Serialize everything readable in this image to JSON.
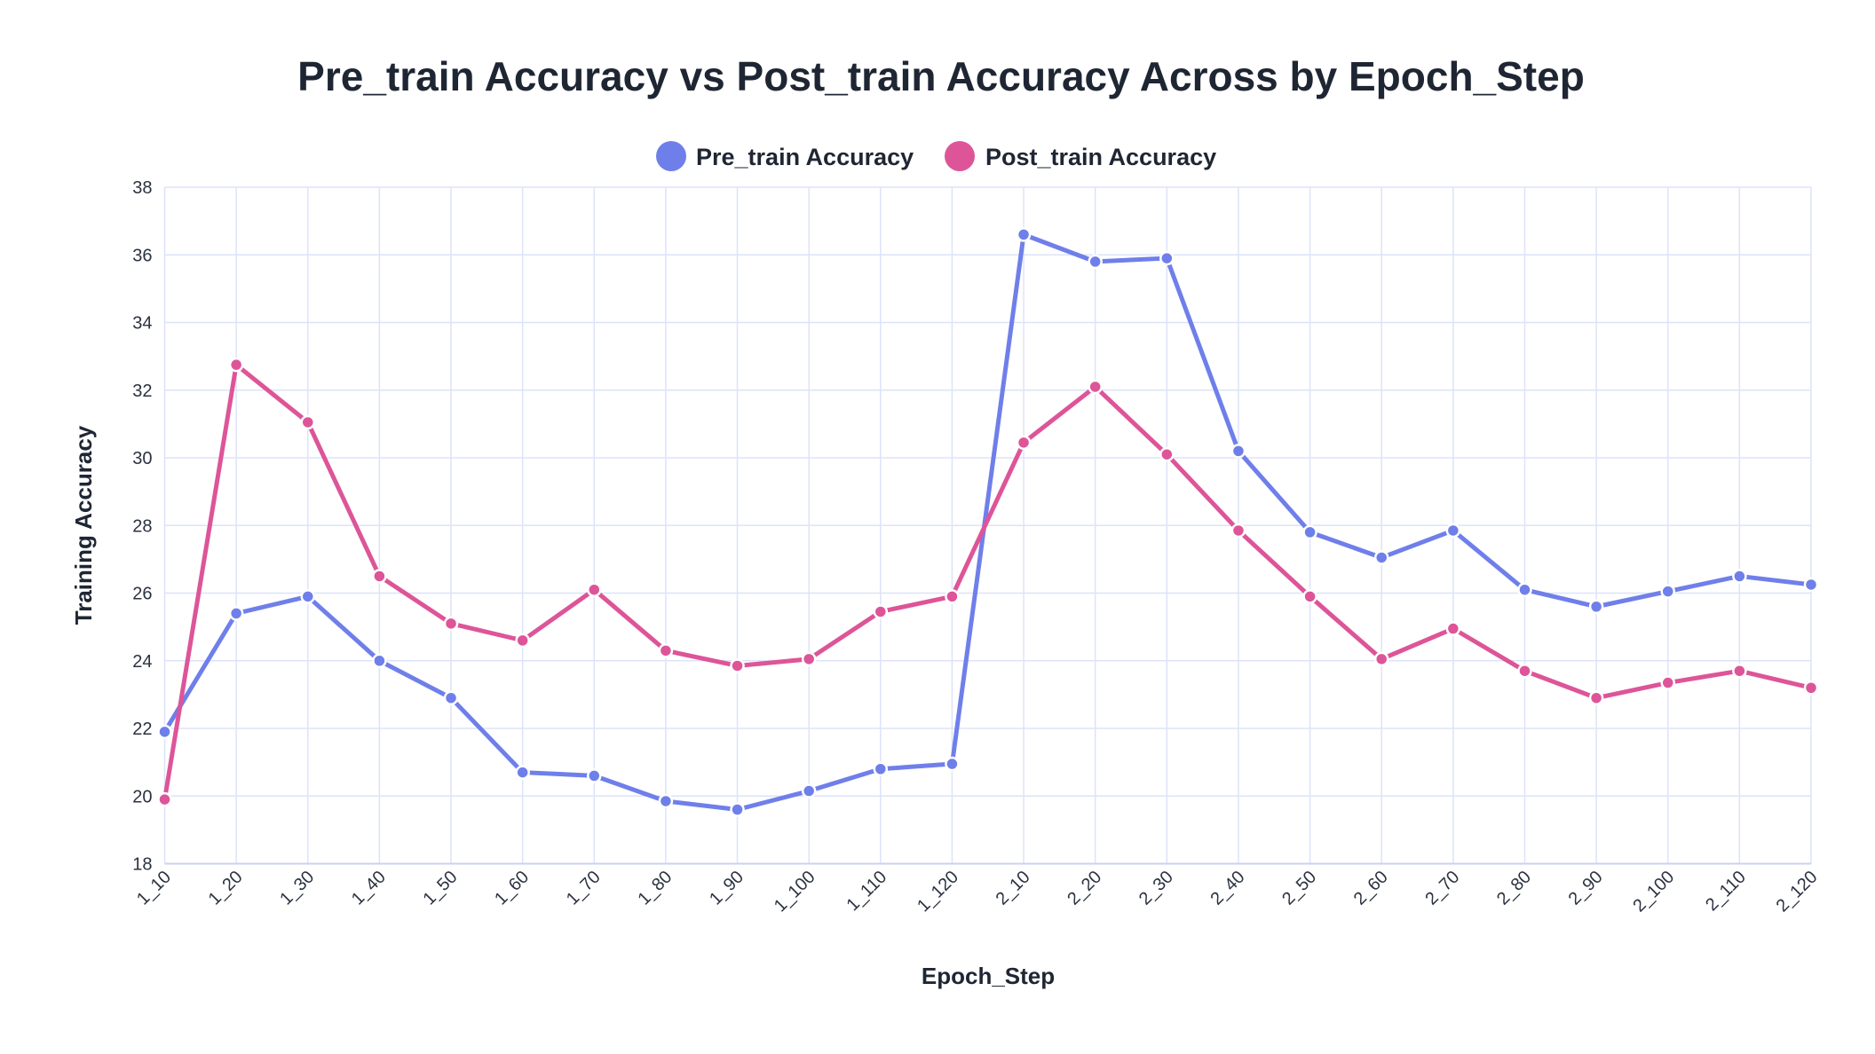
{
  "chart_data": {
    "type": "line",
    "title": "Pre_train Accuracy vs Post_train Accuracy Across by Epoch_Step",
    "xlabel": "Epoch_Step",
    "ylabel": "Training Accuracy",
    "ylim": [
      18,
      38
    ],
    "yticks": [
      18,
      20,
      22,
      24,
      26,
      28,
      30,
      32,
      34,
      36,
      38
    ],
    "grid": true,
    "legend_position": "top-center",
    "categories": [
      "1_10",
      "1_20",
      "1_30",
      "1_40",
      "1_50",
      "1_60",
      "1_70",
      "1_80",
      "1_90",
      "1_100",
      "1_110",
      "1_120",
      "2_10",
      "2_20",
      "2_30",
      "2_40",
      "2_50",
      "2_60",
      "2_70",
      "2_80",
      "2_90",
      "2_100",
      "2_110",
      "2_120"
    ],
    "series": [
      {
        "name": "Pre_train Accuracy",
        "color": "#6f7fea",
        "values": [
          21.9,
          25.4,
          25.9,
          24.0,
          22.9,
          20.7,
          20.6,
          19.85,
          19.6,
          20.15,
          20.8,
          20.95,
          36.6,
          35.8,
          35.9,
          30.2,
          27.8,
          27.05,
          27.85,
          26.1,
          25.6,
          26.05,
          26.5,
          26.25
        ]
      },
      {
        "name": "Post_train Accuracy",
        "color": "#dd5598",
        "values": [
          19.9,
          32.75,
          31.05,
          26.5,
          25.1,
          24.6,
          26.1,
          24.3,
          23.85,
          24.05,
          25.45,
          25.9,
          30.45,
          32.1,
          30.1,
          27.85,
          25.9,
          24.05,
          24.95,
          23.7,
          22.9,
          23.35,
          23.7,
          23.2
        ]
      }
    ]
  }
}
